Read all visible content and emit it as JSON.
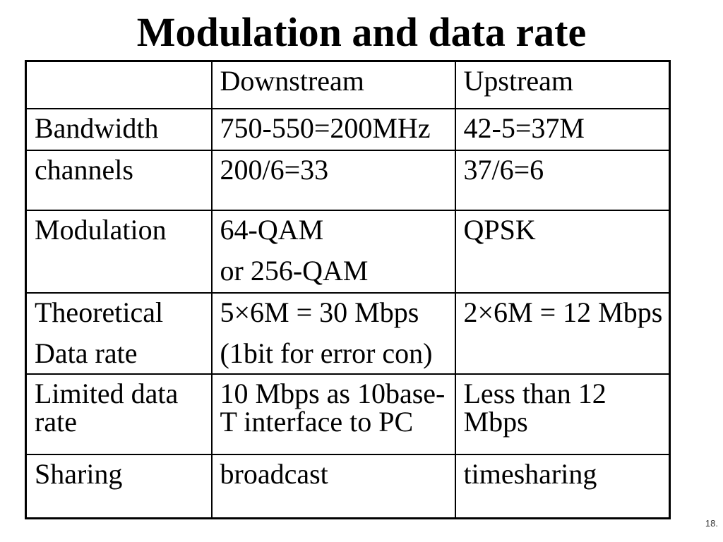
{
  "page": {
    "title": "Modulation and data rate",
    "page_number": "18."
  },
  "colors": {
    "text": "#000000",
    "background": "#ffffff",
    "table_border": "#000000",
    "page_number": "#333333"
  },
  "table": {
    "header": [
      "",
      "Downstream",
      "Upstream"
    ],
    "rows": [
      {
        "cells": [
          [
            "Bandwidth"
          ],
          [
            "750-550=200MHz"
          ],
          [
            "42-5=37M"
          ]
        ]
      },
      {
        "cells": [
          [
            "channels"
          ],
          [
            "200/6=33"
          ],
          [
            "37/6=6"
          ]
        ]
      },
      {
        "cells": [
          [
            "Modulation"
          ],
          [
            "64-QAM",
            "or 256-QAM"
          ],
          [
            "QPSK"
          ]
        ]
      },
      {
        "cells": [
          [
            "Theoretical",
            "Data rate"
          ],
          [
            "5×6M = 30 Mbps",
            "(1bit for error con)"
          ],
          [
            "2×6M = 12 Mbps"
          ]
        ]
      },
      {
        "cells": [
          [
            "Limited data\nrate"
          ],
          [
            "10 Mbps as 10base-\nT interface to PC"
          ],
          [
            "Less than 12\nMbps"
          ]
        ]
      },
      {
        "cells": [
          [
            "Sharing"
          ],
          [
            "broadcast"
          ],
          [
            "timesharing"
          ]
        ]
      }
    ]
  }
}
